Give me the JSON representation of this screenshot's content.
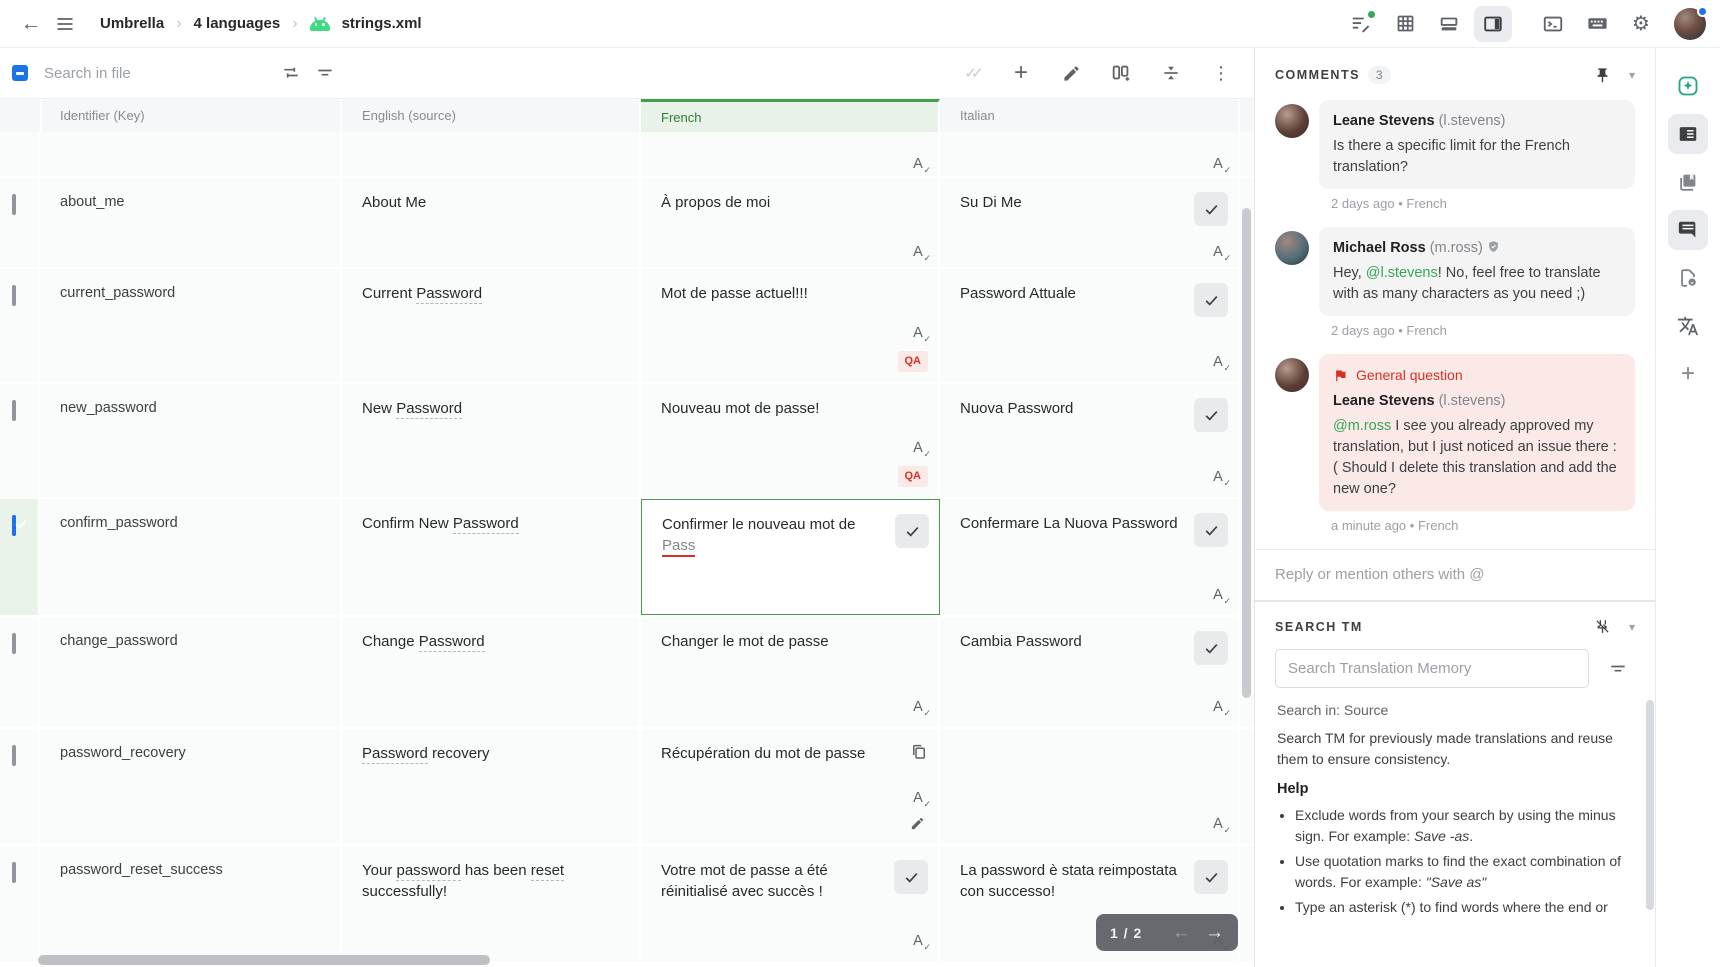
{
  "icons": {
    "back": "←",
    "menu": "≡",
    "crumb_sep": "›",
    "double_check": "✓✓",
    "more_vertical": "⋮",
    "gear": "⚙",
    "chevron_down": "▾",
    "arrow_left": "←",
    "arrow_right": "→",
    "plus": "+"
  },
  "topbar": {
    "breadcrumb": [
      "Umbrella",
      "4 languages",
      "strings.xml"
    ]
  },
  "toolbar": {
    "search_placeholder": "Search in file"
  },
  "table": {
    "columns": [
      "Identifier (Key)",
      "English (source)",
      "French",
      "Italian"
    ],
    "qa_label": "QA",
    "rows": [
      {
        "key": "",
        "partial": true,
        "english": [],
        "french": {
          "segments": [],
          "spell": true
        },
        "italian": {
          "segments": [],
          "spell": true
        }
      },
      {
        "key": "about_me",
        "english": [
          {
            "t": "About Me"
          }
        ],
        "french": {
          "segments": [
            {
              "t": "À propos de moi"
            }
          ],
          "spell": true
        },
        "italian": {
          "segments": [
            {
              "t": "Su Di Me"
            }
          ],
          "check": true,
          "spell": true
        }
      },
      {
        "key": "current_password",
        "english": [
          {
            "t": "Current "
          },
          {
            "t": "Password",
            "u": true
          }
        ],
        "french": {
          "segments": [
            {
              "t": "Mot de passe actuel!!!"
            }
          ],
          "spell": true,
          "qa": true
        },
        "italian": {
          "segments": [
            {
              "t": "Password Attuale"
            }
          ],
          "check": true,
          "spell": true
        }
      },
      {
        "key": "new_password",
        "english": [
          {
            "t": "New "
          },
          {
            "t": "Password",
            "u": true
          }
        ],
        "french": {
          "segments": [
            {
              "t": "Nouveau mot de passe!"
            }
          ],
          "spell": true,
          "qa": true
        },
        "italian": {
          "segments": [
            {
              "t": "Nuova Password"
            }
          ],
          "check": true,
          "spell": true
        }
      },
      {
        "key": "confirm_password",
        "selected": true,
        "english": [
          {
            "t": "Confirm New "
          },
          {
            "t": "Password",
            "u": true
          }
        ],
        "french": {
          "segments": [
            {
              "t": "Confirmer le nouveau mot de "
            },
            {
              "t": "Pass",
              "err": true
            }
          ],
          "check": true,
          "editing": true
        },
        "italian": {
          "segments": [
            {
              "t": "Confermare La Nuova Password"
            }
          ],
          "check": true,
          "spell": true
        }
      },
      {
        "key": "change_password",
        "english": [
          {
            "t": "Change "
          },
          {
            "t": "Password",
            "u": true
          }
        ],
        "french": {
          "segments": [
            {
              "t": "Changer le mot de passe"
            }
          ],
          "spell": true
        },
        "italian": {
          "segments": [
            {
              "t": "Cambia Password"
            }
          ],
          "check": true,
          "spell": true
        }
      },
      {
        "key": "password_recovery",
        "english": [
          {
            "t": "Password",
            "u": true
          },
          {
            "t": " recovery"
          }
        ],
        "french": {
          "segments": [
            {
              "t": "Récupération du mot de passe"
            }
          ],
          "copy": true,
          "spell": true,
          "pencil": true
        },
        "italian": {
          "segments": [],
          "spell": true
        }
      },
      {
        "key": "password_reset_success",
        "english": [
          {
            "t": "Your "
          },
          {
            "t": "password",
            "u": true
          },
          {
            "t": " has been "
          },
          {
            "t": "reset",
            "u": true
          },
          {
            "t": " successfully!"
          }
        ],
        "french": {
          "segments": [
            {
              "t": "Votre mot de passe a été réinitialisé avec succès !"
            }
          ],
          "check": true,
          "spell": true
        },
        "italian": {
          "segments": [
            {
              "t": "La password è stata reimpostata con successo!"
            }
          ],
          "check": true,
          "spell": true
        }
      }
    ]
  },
  "pagination": {
    "label": "1 / 2"
  },
  "comments": {
    "title": "COMMENTS",
    "count": "3",
    "reply_placeholder": "Reply or mention others with @",
    "items": [
      {
        "name": "Leane Stevens",
        "username": "(l.stevens)",
        "body": [
          {
            "t": "Is there a specific limit for the French translation?"
          }
        ],
        "meta": "2 days ago • French",
        "avatar": "a1"
      },
      {
        "name": "Michael Ross",
        "username": "(m.ross)",
        "verified": true,
        "body": [
          {
            "t": "Hey, "
          },
          {
            "t": "@l.stevens",
            "mention": true
          },
          {
            "t": "! No, feel free to translate with as many characters as you need ;)"
          }
        ],
        "meta": "2 days ago • French",
        "avatar": "a2"
      },
      {
        "name": "Leane Stevens",
        "username": "(l.stevens)",
        "flag": "General question",
        "body": [
          {
            "t": "@m.ross",
            "mention": true
          },
          {
            "t": " I see you already approved my translation, but I just noticed an issue there :( Should I delete this translation and add the new one?"
          }
        ],
        "meta": "a minute ago • French",
        "avatar": "a1"
      }
    ]
  },
  "search_tm": {
    "title": "SEARCH TM",
    "input_placeholder": "Search Translation Memory",
    "search_in": "Search in: Source",
    "description": "Search TM for previously made translations and reuse them to ensure consistency.",
    "help_title": "Help",
    "bullets": [
      [
        {
          "t": "Exclude words from your search by using the minus sign. For example: "
        },
        {
          "t": "Save -as",
          "i": true
        },
        {
          "t": "."
        }
      ],
      [
        {
          "t": "Use quotation marks to find the exact combination of words. For example: "
        },
        {
          "t": "\"Save as\"",
          "i": true
        }
      ],
      [
        {
          "t": "Type an asterisk (*) to find words where the end or"
        }
      ]
    ]
  }
}
